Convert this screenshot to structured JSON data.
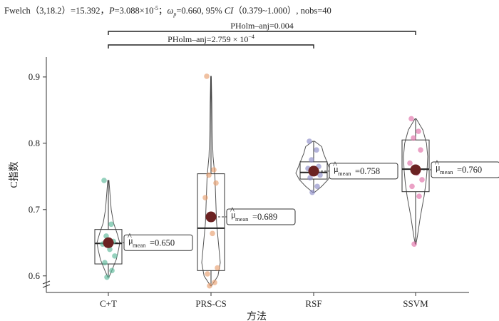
{
  "stats": {
    "prefix": "Fwelch（3,18.2）=15.392，",
    "p_label": "P",
    "p_value": "=3.088×10",
    "p_exp": "-5",
    "sep1": "；",
    "omega": "ω",
    "omega_sub": "p",
    "omega_value": "=0.660, 95% ",
    "ci_label": "CI",
    "ci_value": "（0.379~1.000）",
    "nobs": ", nobs=40"
  },
  "chart_data": {
    "type": "violin-box",
    "xlabel": "方法",
    "ylabel": "C指数",
    "ylim": [
      0.575,
      0.93
    ],
    "yticks": [
      0.6,
      0.7,
      0.8,
      0.9
    ],
    "grid": false,
    "categories": [
      "C+T",
      "PRS-CS",
      "RSF",
      "SSVM"
    ],
    "colors": [
      "#5cb89a",
      "#e8a070",
      "#8c8cc8",
      "#e070a8"
    ],
    "mean_color": "#6b2222",
    "groups": [
      {
        "name": "C+T",
        "q1": 0.618,
        "median": 0.649,
        "q3": 0.67,
        "whisker_low": 0.598,
        "whisker_high": 0.744,
        "mean": 0.65,
        "mean_label": "=0.650",
        "points": [
          0.744,
          0.678,
          0.66,
          0.652,
          0.648,
          0.64,
          0.63,
          0.62,
          0.608,
          0.598
        ],
        "violin": [
          [
            0.598,
            0.05
          ],
          [
            0.61,
            0.35
          ],
          [
            0.625,
            0.7
          ],
          [
            0.64,
            0.9
          ],
          [
            0.65,
            1.0
          ],
          [
            0.665,
            0.75
          ],
          [
            0.68,
            0.45
          ],
          [
            0.7,
            0.25
          ],
          [
            0.72,
            0.16
          ],
          [
            0.744,
            0.05
          ]
        ]
      },
      {
        "name": "PRS-CS",
        "q1": 0.608,
        "median": 0.672,
        "q3": 0.754,
        "whisker_low": 0.585,
        "whisker_high": 0.901,
        "mean": 0.689,
        "mean_label": "=0.689",
        "points": [
          0.901,
          0.76,
          0.752,
          0.74,
          0.718,
          0.664,
          0.612,
          0.603,
          0.59,
          0.585
        ],
        "violin": [
          [
            0.585,
            0.05
          ],
          [
            0.6,
            0.75
          ],
          [
            0.62,
            1.0
          ],
          [
            0.65,
            0.8
          ],
          [
            0.68,
            0.6
          ],
          [
            0.72,
            0.5
          ],
          [
            0.75,
            0.42
          ],
          [
            0.78,
            0.22
          ],
          [
            0.82,
            0.12
          ],
          [
            0.86,
            0.09
          ],
          [
            0.901,
            0.03
          ]
        ]
      },
      {
        "name": "RSF",
        "q1": 0.746,
        "median": 0.756,
        "q3": 0.772,
        "whisker_low": 0.726,
        "whisker_high": 0.803,
        "mean": 0.758,
        "mean_label": "=0.758",
        "points": [
          0.803,
          0.79,
          0.775,
          0.765,
          0.762,
          0.758,
          0.752,
          0.748,
          0.735,
          0.726
        ],
        "violin": [
          [
            0.726,
            0.05
          ],
          [
            0.735,
            0.45
          ],
          [
            0.745,
            0.8
          ],
          [
            0.755,
            1.0
          ],
          [
            0.765,
            0.85
          ],
          [
            0.775,
            0.7
          ],
          [
            0.785,
            0.55
          ],
          [
            0.795,
            0.45
          ],
          [
            0.803,
            0.05
          ]
        ]
      },
      {
        "name": "SSVM",
        "q1": 0.727,
        "median": 0.761,
        "q3": 0.805,
        "whisker_low": 0.648,
        "whisker_high": 0.837,
        "mean": 0.76,
        "mean_label": "=0.760",
        "points": [
          0.837,
          0.818,
          0.808,
          0.79,
          0.77,
          0.755,
          0.745,
          0.735,
          0.72,
          0.648
        ],
        "violin": [
          [
            0.648,
            0.03
          ],
          [
            0.66,
            0.15
          ],
          [
            0.69,
            0.4
          ],
          [
            0.72,
            0.7
          ],
          [
            0.74,
            0.85
          ],
          [
            0.76,
            0.95
          ],
          [
            0.78,
            1.0
          ],
          [
            0.8,
            0.9
          ],
          [
            0.82,
            0.6
          ],
          [
            0.837,
            0.05
          ]
        ]
      }
    ],
    "comparisons": [
      {
        "from": "C+T",
        "to": "SSVM",
        "label": "PHolm–anj=0.004"
      },
      {
        "from": "C+T",
        "to": "RSF",
        "label": "PHolm–anj=2.759 × 10",
        "label_exp": "−4"
      }
    ],
    "mean_prefix": "μ",
    "mean_hat": "^",
    "mean_sub": "mean"
  }
}
